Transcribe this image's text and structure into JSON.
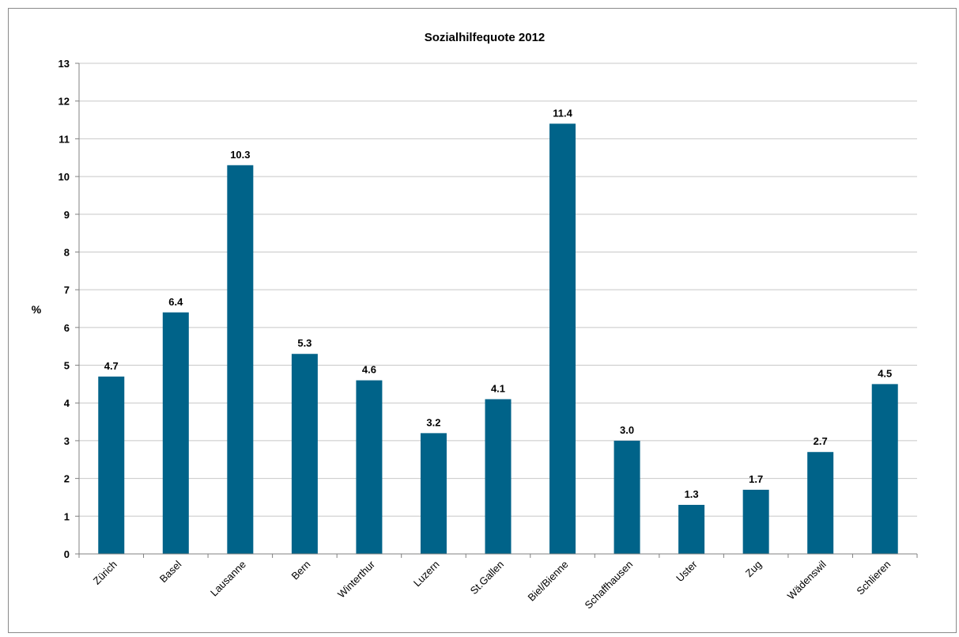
{
  "chart_data": {
    "type": "bar",
    "title": "Sozialhilfequote 2012",
    "xlabel": "",
    "ylabel": "%",
    "ylim": [
      0,
      13
    ],
    "yticks": [
      "0",
      "1",
      "2",
      "3",
      "4",
      "5",
      "6",
      "7",
      "8",
      "9",
      "10",
      "11",
      "12",
      "13"
    ],
    "grid": true,
    "legend": "none",
    "bar_color": "#006389",
    "categories": [
      "Zürich",
      "Basel",
      "Lausanne",
      "Bern",
      "Winterthur",
      "Luzern",
      "St.Gallen",
      "Biel/Bienne",
      "Schaffhausen",
      "Uster",
      "Zug",
      "Wädenswil",
      "Schlieren"
    ],
    "values": [
      4.7,
      6.4,
      10.3,
      5.3,
      4.6,
      3.2,
      4.1,
      11.4,
      3.0,
      1.3,
      1.7,
      2.7,
      4.5
    ],
    "data_labels": [
      "4.7",
      "6.4",
      "10.3",
      "5.3",
      "4.6",
      "3.2",
      "4.1",
      "11.4",
      "3.0",
      "1.3",
      "1.7",
      "2.7",
      "4.5"
    ]
  }
}
